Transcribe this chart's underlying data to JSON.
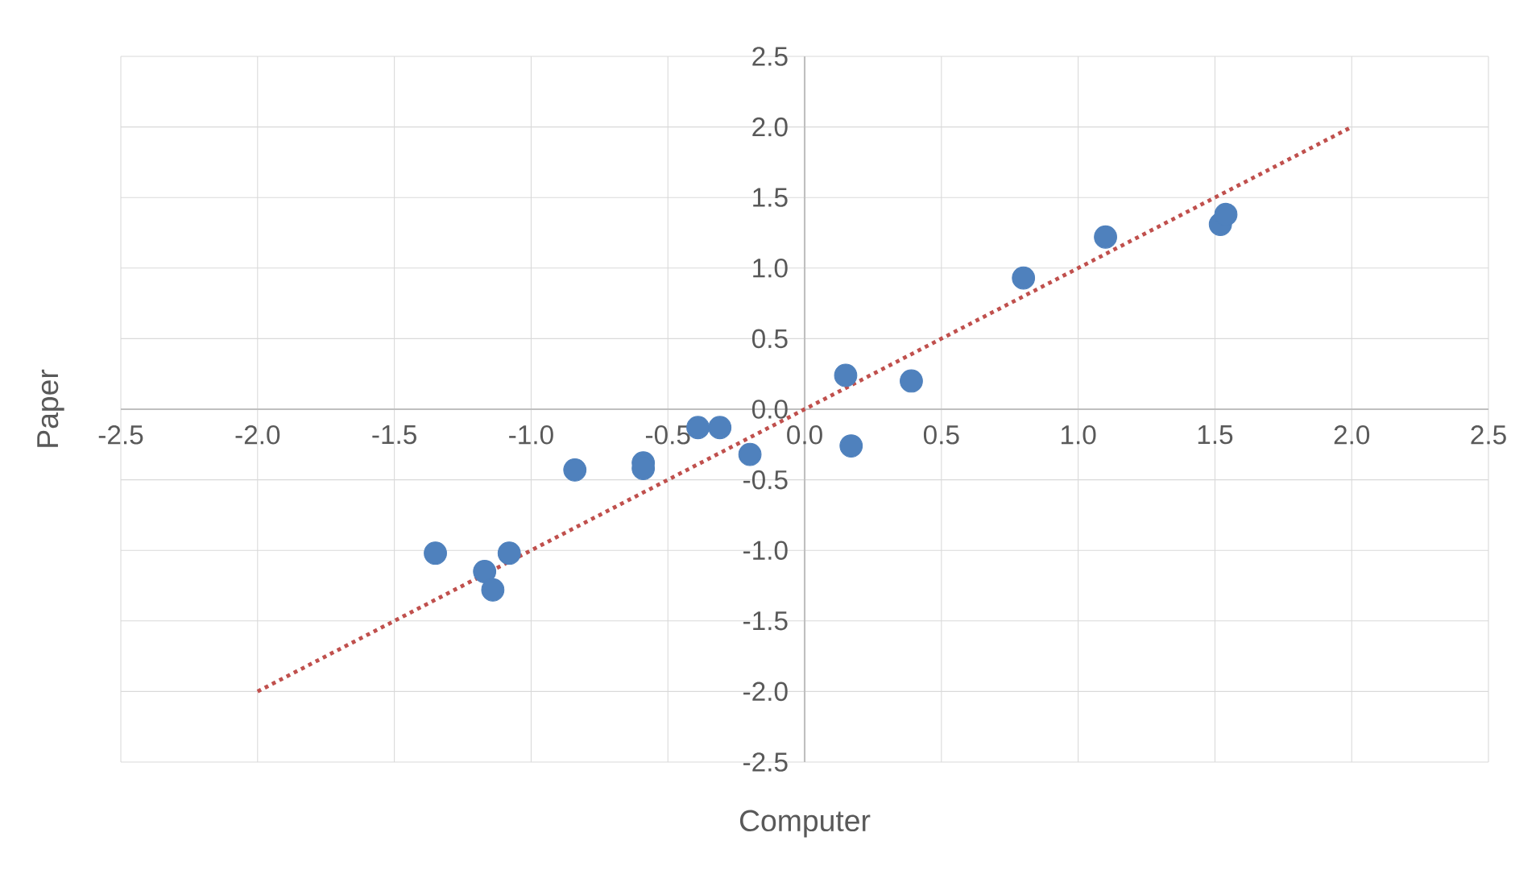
{
  "chart_data": {
    "type": "scatter",
    "xlabel": "Computer",
    "ylabel": "Paper",
    "xlim": [
      -2.5,
      2.5
    ],
    "ylim": [
      -2.5,
      2.5
    ],
    "xticks": [
      {
        "value": -2.5,
        "label": "-2.5"
      },
      {
        "value": -2,
        "label": "-2.0"
      },
      {
        "value": -1.5,
        "label": "-1.5"
      },
      {
        "value": -1,
        "label": "-1.0"
      },
      {
        "value": -0.5,
        "label": "-0.5"
      },
      {
        "value": 0,
        "label": "0.0"
      },
      {
        "value": 0.5,
        "label": "0.5"
      },
      {
        "value": 1,
        "label": "1.0"
      },
      {
        "value": 1.5,
        "label": "1.5"
      },
      {
        "value": 2,
        "label": "2.0"
      },
      {
        "value": 2.5,
        "label": "2.5"
      }
    ],
    "yticks": [
      {
        "value": -2.5,
        "label": "-2.5"
      },
      {
        "value": -2,
        "label": "-2.0"
      },
      {
        "value": -1.5,
        "label": "-1.5"
      },
      {
        "value": -1,
        "label": "-1.0"
      },
      {
        "value": -0.5,
        "label": "-0.5"
      },
      {
        "value": 0,
        "label": "0.0"
      },
      {
        "value": 0.5,
        "label": "0.5"
      },
      {
        "value": 1,
        "label": "1.0"
      },
      {
        "value": 1.5,
        "label": "1.5"
      },
      {
        "value": 2,
        "label": "2.0"
      },
      {
        "value": 2.5,
        "label": "2.5"
      }
    ],
    "grid": true,
    "series": [
      {
        "type": "scatter",
        "color": "#4f81bd",
        "marker": "circle",
        "x": [
          -1.35,
          -1.17,
          -1.14,
          -1.08,
          -0.84,
          -0.59,
          -0.59,
          -0.39,
          -0.31,
          -0.2,
          0.15,
          0.17,
          0.39,
          0.8,
          1.1,
          1.52,
          1.54
        ],
        "values": [
          -1.02,
          -1.15,
          -1.28,
          -1.02,
          -0.43,
          -0.38,
          -0.42,
          -0.13,
          -0.13,
          -0.32,
          0.24,
          -0.26,
          0.2,
          0.93,
          1.22,
          1.31,
          1.38
        ]
      },
      {
        "type": "line",
        "color": "#c0504d",
        "line_style": "dotted",
        "marker": "none",
        "x": [
          -2,
          2
        ],
        "values": [
          -2,
          2
        ]
      }
    ]
  }
}
